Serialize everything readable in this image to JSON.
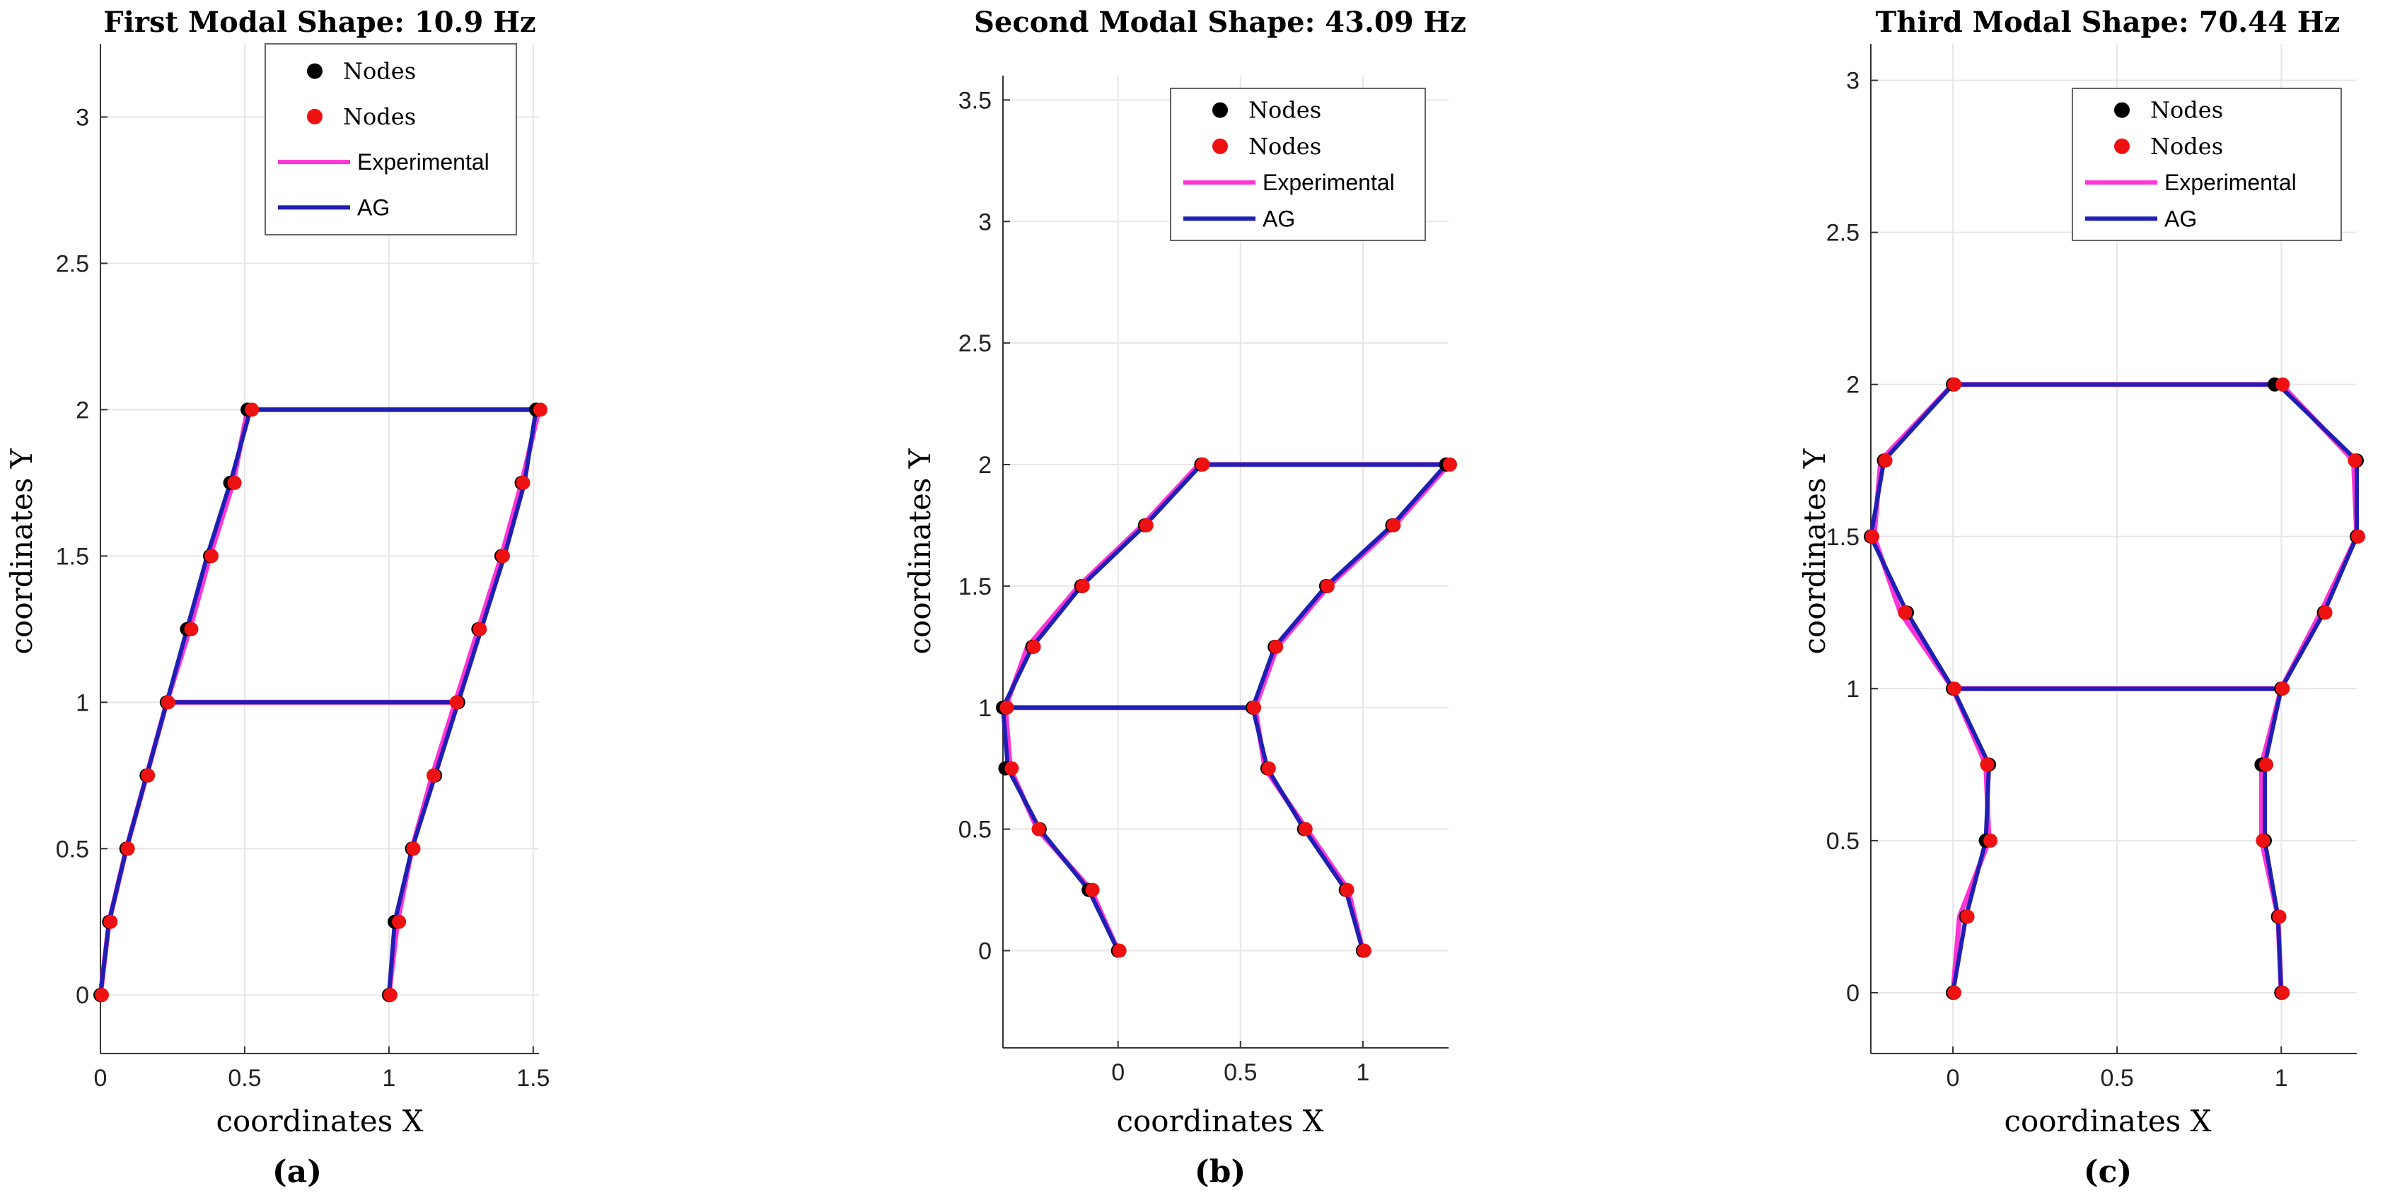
{
  "chart_data": [
    {
      "type": "line",
      "title": "First Modal Shape: 10.9 Hz",
      "caption": "(a)",
      "xlabel": "coordinates X",
      "ylabel": "coordinates Y",
      "xlim": [
        0,
        1.52
      ],
      "ylim": [
        -0.2,
        3.25
      ],
      "xticks": [
        0,
        0.5,
        1,
        1.5
      ],
      "xtick_labels": [
        "0",
        "0.5",
        "1",
        "1.5"
      ],
      "yticks": [
        0,
        0.5,
        1,
        1.5,
        2,
        2.5,
        3
      ],
      "ytick_labels": [
        "0",
        "0.5",
        "1",
        "1.5",
        "2",
        "2.5",
        "3"
      ],
      "grid": true,
      "legend_position": "top-right",
      "legend": [
        "Nodes",
        "Nodes",
        "Experimental",
        "AG"
      ],
      "series": [
        {
          "name": "AG",
          "role": "left-column",
          "x": [
            0,
            0.03,
            0.09,
            0.16,
            0.23,
            0.3,
            0.37,
            0.45,
            0.52
          ],
          "y": [
            0,
            0.25,
            0.5,
            0.75,
            1,
            1.25,
            1.5,
            1.75,
            2
          ]
        },
        {
          "name": "AG",
          "role": "right-column",
          "x": [
            1,
            1.02,
            1.08,
            1.16,
            1.24,
            1.32,
            1.4,
            1.47,
            1.51
          ],
          "y": [
            0,
            0.25,
            0.5,
            0.75,
            1,
            1.25,
            1.5,
            1.75,
            2
          ]
        },
        {
          "name": "AG",
          "role": "floor-1",
          "x": [
            0.23,
            1.24
          ],
          "y": [
            1,
            1
          ]
        },
        {
          "name": "AG",
          "role": "floor-2",
          "x": [
            0.52,
            1.51
          ],
          "y": [
            2,
            2
          ]
        },
        {
          "name": "Experimental",
          "role": "left-column",
          "x": [
            0,
            0.03,
            0.09,
            0.16,
            0.23,
            0.31,
            0.38,
            0.46,
            0.51
          ],
          "y": [
            0,
            0.25,
            0.5,
            0.75,
            1,
            1.25,
            1.5,
            1.75,
            2
          ]
        },
        {
          "name": "Experimental",
          "role": "right-column",
          "x": [
            1,
            1.03,
            1.08,
            1.15,
            1.23,
            1.31,
            1.39,
            1.46,
            1.52
          ],
          "y": [
            0,
            0.25,
            0.5,
            0.75,
            1,
            1.25,
            1.5,
            1.75,
            2
          ]
        },
        {
          "name": "Experimental",
          "role": "floor-1",
          "x": [
            0.23,
            1.23
          ],
          "y": [
            1,
            1
          ]
        },
        {
          "name": "Experimental",
          "role": "floor-2",
          "x": [
            0.51,
            1.52
          ],
          "y": [
            2,
            2
          ]
        }
      ],
      "nodes_black": {
        "x": [
          0,
          0.03,
          0.09,
          0.16,
          0.23,
          0.3,
          0.38,
          0.45,
          0.51,
          1,
          1.02,
          1.08,
          1.16,
          1.24,
          1.31,
          1.39,
          1.46,
          1.51
        ],
        "y": [
          0,
          0.25,
          0.5,
          0.75,
          1,
          1.25,
          1.5,
          1.75,
          2,
          0,
          0.25,
          0.5,
          0.75,
          1,
          1.25,
          1.5,
          1.75,
          2
        ]
      },
      "nodes_red": {
        "x": [
          0,
          0.03,
          0.09,
          0.16,
          0.23,
          0.31,
          0.38,
          0.46,
          0.52,
          1,
          1.03,
          1.08,
          1.15,
          1.23,
          1.31,
          1.39,
          1.46,
          1.52
        ],
        "y": [
          0,
          0.25,
          0.5,
          0.75,
          1,
          1.25,
          1.5,
          1.75,
          2,
          0,
          0.25,
          0.5,
          0.75,
          1,
          1.25,
          1.5,
          1.75,
          2
        ]
      }
    },
    {
      "type": "line",
      "title": "Second Modal Shape: 43.09 Hz",
      "caption": "(b)",
      "xlabel": "coordinates X",
      "ylabel": "coordinates Y",
      "xlim": [
        -0.47,
        1.35
      ],
      "ylim": [
        -0.4,
        3.6
      ],
      "xticks": [
        0,
        0.5,
        1
      ],
      "xtick_labels": [
        "0",
        "0.5",
        "1"
      ],
      "yticks": [
        0,
        0.5,
        1,
        1.5,
        2,
        2.5,
        3,
        3.5
      ],
      "ytick_labels": [
        "0",
        "0.5",
        "1",
        "1.5",
        "2",
        "2.5",
        "3",
        "3.5"
      ],
      "grid": true,
      "legend_position": "top-right",
      "legend": [
        "Nodes",
        "Nodes",
        "Experimental",
        "AG"
      ],
      "series": [
        {
          "name": "AG",
          "role": "left-column",
          "x": [
            0,
            -0.12,
            -0.32,
            -0.45,
            -0.47,
            -0.35,
            -0.15,
            0.11,
            0.34
          ],
          "y": [
            0,
            0.25,
            0.5,
            0.75,
            1,
            1.25,
            1.5,
            1.75,
            2
          ]
        },
        {
          "name": "AG",
          "role": "right-column",
          "x": [
            1,
            0.93,
            0.76,
            0.61,
            0.55,
            0.64,
            0.85,
            1.12,
            1.34
          ],
          "y": [
            0,
            0.25,
            0.5,
            0.75,
            1,
            1.25,
            1.5,
            1.75,
            2
          ]
        },
        {
          "name": "AG",
          "role": "floor-1",
          "x": [
            -0.47,
            0.55
          ],
          "y": [
            1,
            1
          ]
        },
        {
          "name": "AG",
          "role": "floor-2",
          "x": [
            0.34,
            1.34
          ],
          "y": [
            2,
            2
          ]
        },
        {
          "name": "Experimental",
          "role": "left-column",
          "x": [
            0,
            -0.11,
            -0.33,
            -0.44,
            -0.46,
            -0.37,
            -0.16,
            0.1,
            0.33
          ],
          "y": [
            0,
            0.25,
            0.5,
            0.75,
            1,
            1.25,
            1.5,
            1.75,
            2
          ]
        },
        {
          "name": "Experimental",
          "role": "right-column",
          "x": [
            1,
            0.94,
            0.77,
            0.6,
            0.56,
            0.65,
            0.86,
            1.13,
            1.35
          ],
          "y": [
            0,
            0.25,
            0.5,
            0.75,
            1,
            1.25,
            1.5,
            1.75,
            2
          ]
        },
        {
          "name": "Experimental",
          "role": "floor-1",
          "x": [
            -0.46,
            0.56
          ],
          "y": [
            1,
            1
          ]
        },
        {
          "name": "Experimental",
          "role": "floor-2",
          "x": [
            0.33,
            1.35
          ],
          "y": [
            2,
            2
          ]
        }
      ],
      "nodes_black": {
        "x": [
          0,
          -0.12,
          -0.32,
          -0.46,
          -0.47,
          -0.35,
          -0.15,
          0.11,
          0.34,
          1,
          0.93,
          0.76,
          0.61,
          0.55,
          0.64,
          0.85,
          1.12,
          1.34
        ],
        "y": [
          0,
          0.25,
          0.5,
          0.75,
          1,
          1.25,
          1.5,
          1.75,
          2,
          0,
          0.25,
          0.5,
          0.75,
          1,
          1.25,
          1.5,
          1.75,
          2
        ]
      },
      "nodes_red": {
        "x": [
          0,
          -0.11,
          -0.33,
          -0.44,
          -0.46,
          -0.35,
          -0.15,
          0.11,
          0.34,
          1,
          0.93,
          0.76,
          0.61,
          0.55,
          0.64,
          0.85,
          1.12,
          1.35
        ],
        "y": [
          0,
          0.25,
          0.5,
          0.75,
          1,
          1.25,
          1.5,
          1.75,
          2,
          0,
          0.25,
          0.5,
          0.75,
          1,
          1.25,
          1.5,
          1.75,
          2
        ]
      }
    },
    {
      "type": "line",
      "title": "Third Modal Shape: 70.44 Hz",
      "caption": "(c)",
      "xlabel": "coordinates X",
      "ylabel": "coordinates Y",
      "xlim": [
        -0.25,
        1.23
      ],
      "ylim": [
        -0.2,
        3.12
      ],
      "xticks": [
        0,
        0.5,
        1
      ],
      "xtick_labels": [
        "0",
        "0.5",
        "1"
      ],
      "yticks": [
        0,
        0.5,
        1,
        1.5,
        2,
        2.5,
        3
      ],
      "ytick_labels": [
        "0",
        "0.5",
        "1",
        "1.5",
        "2",
        "2.5",
        "3"
      ],
      "grid": true,
      "legend_position": "top-right",
      "legend": [
        "Nodes",
        "Nodes",
        "Experimental",
        "AG"
      ],
      "series": [
        {
          "name": "AG",
          "role": "left-column",
          "x": [
            0,
            0.04,
            0.1,
            0.11,
            0,
            -0.14,
            -0.25,
            -0.21,
            0
          ],
          "y": [
            0,
            0.25,
            0.5,
            0.75,
            1,
            1.25,
            1.5,
            1.75,
            2
          ]
        },
        {
          "name": "AG",
          "role": "right-column",
          "x": [
            1,
            0.99,
            0.95,
            0.95,
            1,
            1.13,
            1.23,
            1.23,
            0.99
          ],
          "y": [
            0,
            0.25,
            0.5,
            0.75,
            1,
            1.25,
            1.5,
            1.75,
            2
          ]
        },
        {
          "name": "AG",
          "role": "floor-1",
          "x": [
            0,
            1
          ],
          "y": [
            1,
            1
          ]
        },
        {
          "name": "AG",
          "role": "floor-2",
          "x": [
            0,
            0.99
          ],
          "y": [
            2,
            2
          ]
        },
        {
          "name": "Experimental",
          "role": "left-column",
          "x": [
            0,
            0.02,
            0.11,
            0.1,
            0,
            -0.16,
            -0.24,
            -0.22,
            0
          ],
          "y": [
            0,
            0.25,
            0.5,
            0.75,
            1,
            1.25,
            1.5,
            1.75,
            2
          ]
        },
        {
          "name": "Experimental",
          "role": "right-column",
          "x": [
            1,
            0.99,
            0.94,
            0.94,
            1,
            1.12,
            1.23,
            1.22,
            1
          ],
          "y": [
            0,
            0.25,
            0.5,
            0.75,
            1,
            1.25,
            1.5,
            1.75,
            2
          ]
        },
        {
          "name": "Experimental",
          "role": "floor-1",
          "x": [
            0,
            1
          ],
          "y": [
            1,
            1
          ]
        },
        {
          "name": "Experimental",
          "role": "floor-2",
          "x": [
            0,
            1
          ],
          "y": [
            2,
            2
          ]
        }
      ],
      "nodes_black": {
        "x": [
          0,
          0.04,
          0.1,
          0.11,
          0,
          -0.14,
          -0.25,
          -0.21,
          0,
          1,
          0.99,
          0.95,
          0.94,
          1,
          1.13,
          1.23,
          1.23,
          0.98
        ],
        "y": [
          0,
          0.25,
          0.5,
          0.75,
          1,
          1.25,
          1.5,
          1.75,
          2,
          0,
          0.25,
          0.5,
          0.75,
          1,
          1.25,
          1.5,
          1.75,
          2
        ]
      },
      "nodes_red": {
        "x": [
          0,
          0.04,
          0.11,
          0.1,
          0,
          -0.15,
          -0.25,
          -0.21,
          0,
          1,
          0.99,
          0.94,
          0.95,
          1,
          1.13,
          1.23,
          1.22,
          1
        ],
        "y": [
          0,
          0.25,
          0.5,
          0.75,
          1,
          1.25,
          1.5,
          1.75,
          2,
          0,
          0.25,
          0.5,
          0.75,
          1,
          1.25,
          1.5,
          1.75,
          2
        ]
      }
    }
  ],
  "colors": {
    "ag": "#1f1fb4",
    "experimental": "#ff33d6",
    "node_black": "#000000",
    "node_red": "#ee1111",
    "grid": "#e6e6e6",
    "axis": "#333333"
  }
}
